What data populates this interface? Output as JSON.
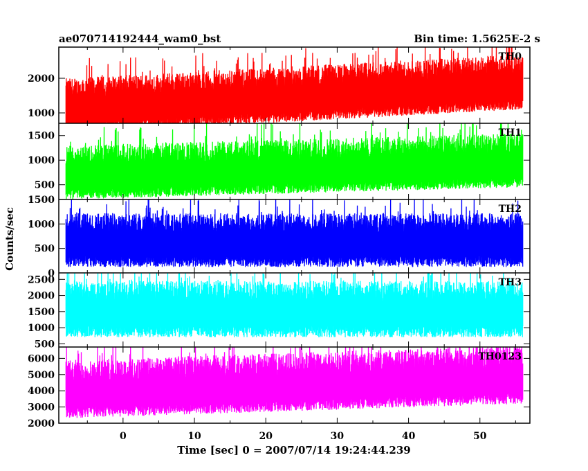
{
  "header": {
    "left_title": "ae070714192444_wam0_bst",
    "right_title": "Bin time: 1.5625E-2 s"
  },
  "chart_data": {
    "type": "line",
    "xlabel": "Time [sec] 0 = 2007/07/14 19:24:44.239",
    "ylabel": "Counts/sec",
    "xlim": [
      -9,
      57
    ],
    "xticks": [
      0,
      10,
      20,
      30,
      40,
      50
    ],
    "x_data_range": [
      -8,
      56
    ],
    "bin_time": 0.015625,
    "grid": false,
    "panels": [
      {
        "name": "TH0",
        "color": "#ff0000",
        "ylim": [
          700,
          2900
        ],
        "yticks": [
          1000,
          2000
        ],
        "trend_start": 1050,
        "trend_end": 1750,
        "noise_low": 650,
        "noise_high": 950,
        "max_peak": 2800
      },
      {
        "name": "TH1",
        "color": "#00ff00",
        "ylim": [
          200,
          1750
        ],
        "yticks": [
          500,
          1000,
          1500
        ],
        "trend_start": 650,
        "trend_end": 900,
        "noise_low": 450,
        "noise_high": 650,
        "max_peak": 1700
      },
      {
        "name": "TH2",
        "color": "#0000ff",
        "ylim": [
          0,
          1500
        ],
        "yticks": [
          0,
          500,
          1000,
          1500
        ],
        "trend_start": 620,
        "trend_end": 620,
        "noise_low": 500,
        "noise_high": 600,
        "max_peak": 1500
      },
      {
        "name": "TH3",
        "color": "#00ffff",
        "ylim": [
          400,
          2700
        ],
        "yticks": [
          500,
          1000,
          1500,
          2000,
          2500
        ],
        "trend_start": 1500,
        "trend_end": 1500,
        "noise_low": 800,
        "noise_high": 950,
        "max_peak": 2650
      },
      {
        "name": "TH0123",
        "color": "#ff00ff",
        "ylim": [
          2000,
          6700
        ],
        "yticks": [
          2000,
          3000,
          4000,
          5000,
          6000
        ],
        "trend_start": 3800,
        "trend_end": 4700,
        "noise_low": 1500,
        "noise_high": 2100,
        "max_peak": 6700
      }
    ]
  }
}
